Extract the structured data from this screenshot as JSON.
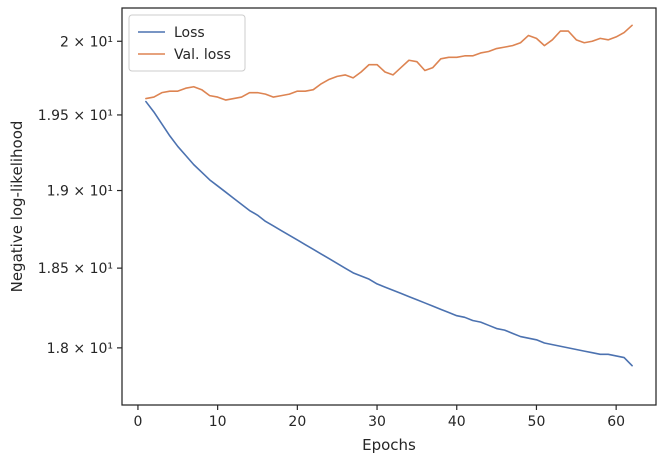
{
  "chart_data": {
    "type": "line",
    "title": "",
    "xlabel": "Epochs",
    "ylabel": "Negative log-likelihood",
    "xlim": [
      -2,
      65
    ],
    "ylim": [
      17.65,
      20.23
    ],
    "xticks": [
      {
        "value": 0,
        "label": "0"
      },
      {
        "value": 10,
        "label": "10"
      },
      {
        "value": 20,
        "label": "20"
      },
      {
        "value": 30,
        "label": "30"
      },
      {
        "value": 40,
        "label": "40"
      },
      {
        "value": 50,
        "label": "50"
      },
      {
        "value": 60,
        "label": "60"
      }
    ],
    "yticks": [
      {
        "value": 18.0,
        "label": "1.8 × 10¹"
      },
      {
        "value": 18.5,
        "label": "1.85 × 10¹"
      },
      {
        "value": 19.0,
        "label": "1.9 × 10¹"
      },
      {
        "value": 19.5,
        "label": "1.95 × 10¹"
      },
      {
        "value": 20.0,
        "label": "2 × 10¹"
      }
    ],
    "yscale": "log",
    "grid": false,
    "legend_position": "upper-left",
    "series": [
      {
        "name": "Loss",
        "color": "#4c72b0",
        "x": [
          1,
          2,
          3,
          4,
          5,
          6,
          7,
          8,
          9,
          10,
          11,
          12,
          13,
          14,
          15,
          16,
          17,
          18,
          19,
          20,
          21,
          22,
          23,
          24,
          25,
          26,
          27,
          28,
          29,
          30,
          31,
          32,
          33,
          34,
          35,
          36,
          37,
          38,
          39,
          40,
          41,
          42,
          43,
          44,
          45,
          46,
          47,
          48,
          49,
          50,
          51,
          52,
          53,
          54,
          55,
          56,
          57,
          58,
          59,
          60,
          61,
          62
        ],
        "y": [
          19.59,
          19.52,
          19.44,
          19.36,
          19.29,
          19.23,
          19.17,
          19.12,
          19.07,
          19.03,
          18.99,
          18.95,
          18.91,
          18.87,
          18.84,
          18.8,
          18.77,
          18.74,
          18.71,
          18.68,
          18.65,
          18.62,
          18.59,
          18.56,
          18.53,
          18.5,
          18.47,
          18.45,
          18.43,
          18.4,
          18.38,
          18.36,
          18.34,
          18.32,
          18.3,
          18.28,
          18.26,
          18.24,
          18.22,
          18.2,
          18.19,
          18.17,
          18.16,
          18.14,
          18.12,
          18.11,
          18.09,
          18.07,
          18.06,
          18.05,
          18.03,
          18.02,
          18.01,
          18.0,
          17.99,
          17.98,
          17.97,
          17.96,
          17.96,
          17.95,
          17.94,
          17.89
        ]
      },
      {
        "name": "Val. loss",
        "color": "#dd8452",
        "x": [
          1,
          2,
          3,
          4,
          5,
          6,
          7,
          8,
          9,
          10,
          11,
          12,
          13,
          14,
          15,
          16,
          17,
          18,
          19,
          20,
          21,
          22,
          23,
          24,
          25,
          26,
          27,
          28,
          29,
          30,
          31,
          32,
          33,
          34,
          35,
          36,
          37,
          38,
          39,
          40,
          41,
          42,
          43,
          44,
          45,
          46,
          47,
          48,
          49,
          50,
          51,
          52,
          53,
          54,
          55,
          56,
          57,
          58,
          59,
          60,
          61,
          62
        ],
        "y": [
          19.61,
          19.62,
          19.65,
          19.66,
          19.66,
          19.68,
          19.69,
          19.67,
          19.63,
          19.62,
          19.6,
          19.61,
          19.62,
          19.65,
          19.65,
          19.64,
          19.62,
          19.63,
          19.64,
          19.66,
          19.66,
          19.67,
          19.71,
          19.74,
          19.76,
          19.77,
          19.75,
          19.79,
          19.84,
          19.84,
          19.79,
          19.77,
          19.82,
          19.87,
          19.86,
          19.8,
          19.82,
          19.88,
          19.89,
          19.89,
          19.9,
          19.9,
          19.92,
          19.93,
          19.95,
          19.96,
          19.97,
          19.99,
          20.04,
          20.02,
          19.97,
          20.01,
          20.07,
          20.07,
          20.01,
          19.99,
          20.0,
          20.02,
          20.01,
          20.03,
          20.06,
          20.11
        ]
      }
    ]
  }
}
